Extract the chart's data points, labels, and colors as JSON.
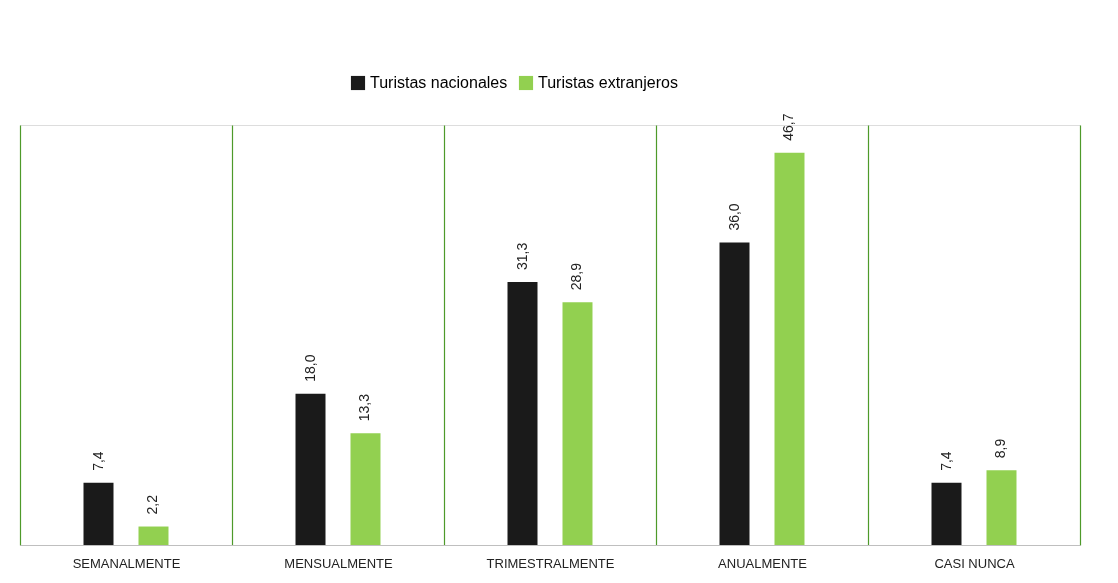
{
  "chart_data": {
    "type": "bar",
    "categories": [
      "SEMANALMENTE",
      "MENSUALMENTE",
      "TRIMESTRALMENTE",
      "ANUALMENTE",
      "CASI NUNCA"
    ],
    "series": [
      {
        "name": "Turistas nacionales",
        "color": "#1a1a1a",
        "values": [
          7.4,
          18.0,
          31.3,
          36.0,
          7.4
        ],
        "value_labels": [
          "7,4",
          "18,0",
          "31,3",
          "36,0",
          "7,4"
        ]
      },
      {
        "name": "Turistas extranjeros",
        "color": "#92d050",
        "values": [
          2.2,
          13.3,
          28.9,
          46.7,
          8.9
        ],
        "value_labels": [
          "2,2",
          "13,3",
          "28,9",
          "46,7",
          "8,9"
        ]
      }
    ],
    "grid": "x",
    "legend": "top"
  }
}
